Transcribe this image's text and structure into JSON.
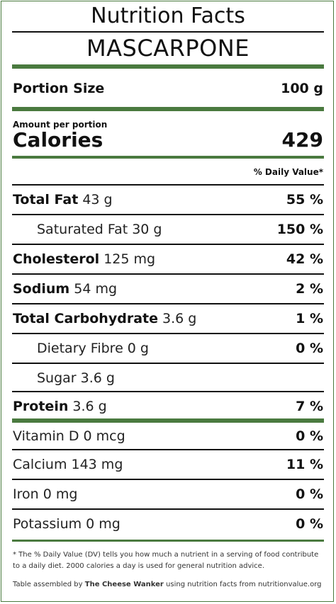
{
  "title": "Nutrition Facts",
  "product": "MASCARPONE",
  "portion": {
    "label": "Portion Size",
    "value": "100 g"
  },
  "amount_per_portion": "Amount per portion",
  "calories": {
    "label": "Calories",
    "value": "429"
  },
  "dv_header": "% Daily Value*",
  "rows": [
    {
      "label": "Total Fat",
      "amount": "43 g",
      "dv": "55 %"
    },
    {
      "label": "Saturated Fat 30 g",
      "amount": "",
      "dv": "150 %"
    },
    {
      "label": "Cholesterol",
      "amount": "125 mg",
      "dv": "42 %"
    },
    {
      "label": "Sodium",
      "amount": "54 mg",
      "dv": "2 %"
    },
    {
      "label": "Total Carbohydrate",
      "amount": "3.6 g",
      "dv": "1 %"
    },
    {
      "label": "Dietary Fibre 0 g",
      "amount": "",
      "dv": "0 %"
    },
    {
      "label": "Sugar 3.6 g",
      "amount": "",
      "dv": ""
    },
    {
      "label": "Protein",
      "amount": "3.6 g",
      "dv": "7 %"
    },
    {
      "label": "Vitamin D 0 mcg",
      "amount": "",
      "dv": "0 %"
    },
    {
      "label": "Calcium 143 mg",
      "amount": "",
      "dv": "11 %"
    },
    {
      "label": "Iron 0 mg",
      "amount": "",
      "dv": "0 %"
    },
    {
      "label": "Potassium 0 mg",
      "amount": "",
      "dv": "0 %"
    }
  ],
  "footnote": "* The % Daily Value (DV) tells you how much a nutrient in a serving of food contribute to a daily diet. 2000 calories a day is used for general nutrition advice.",
  "credit": {
    "prefix": "Table assembled by",
    "brand": "The Cheese Wanker",
    "suffix": "using nutrition facts from nutritionvalue.org"
  },
  "colors": {
    "accent": "#4a7a3f",
    "text": "#111111"
  }
}
